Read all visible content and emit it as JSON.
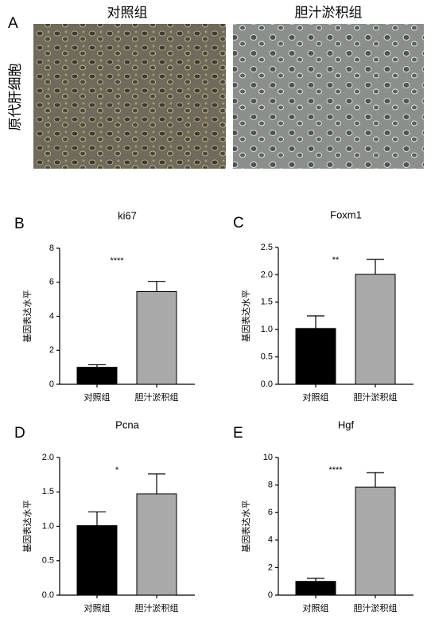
{
  "panel_a": {
    "label": "A",
    "columns": [
      "对照组",
      "胆汁淤积组"
    ],
    "row_label": "原代肝细胞"
  },
  "chart_data": [
    {
      "type": "bar",
      "panel": "B",
      "title": "ki67",
      "ylabel": "基因表达水平",
      "annotation": "****",
      "categories": [
        "对照组",
        "胆汁淤积组"
      ],
      "values": [
        1.0,
        5.45
      ],
      "errors": [
        0.15,
        0.6
      ],
      "colors": [
        "#000000",
        "#a9a9a9"
      ],
      "ylim": [
        0,
        8
      ],
      "yticks": [
        0,
        2,
        4,
        6,
        8
      ]
    },
    {
      "type": "bar",
      "panel": "C",
      "title": "Foxm1",
      "ylabel": "基因表达水平",
      "annotation": "**",
      "categories": [
        "对照组",
        "胆汁淤积组"
      ],
      "values": [
        1.02,
        2.01
      ],
      "errors": [
        0.23,
        0.27
      ],
      "colors": [
        "#000000",
        "#a9a9a9"
      ],
      "ylim": [
        0,
        2.5
      ],
      "yticks": [
        {
          "value": 0,
          "label": "0.0"
        },
        {
          "value": 0.5,
          "label": "0.5"
        },
        {
          "value": 1,
          "label": "1.0"
        },
        {
          "value": 1.5,
          "label": "1.5"
        },
        {
          "value": 2,
          "label": "2.0"
        },
        {
          "value": 2.5,
          "label": "2.5"
        }
      ]
    },
    {
      "type": "bar",
      "panel": "D",
      "title": "Pcna",
      "ylabel": "基因表达水平",
      "annotation": "*",
      "categories": [
        "对照组",
        "胆汁淤积组"
      ],
      "values": [
        1.01,
        1.47
      ],
      "errors": [
        0.2,
        0.29
      ],
      "colors": [
        "#000000",
        "#a9a9a9"
      ],
      "ylim": [
        0,
        2
      ],
      "yticks": [
        {
          "value": 0,
          "label": "0.0"
        },
        {
          "value": 0.5,
          "label": "0.5"
        },
        {
          "value": 1,
          "label": "1.0"
        },
        {
          "value": 1.5,
          "label": "1.5"
        },
        {
          "value": 2,
          "label": "2.0"
        }
      ]
    },
    {
      "type": "bar",
      "panel": "E",
      "title": "Hgf",
      "ylabel": "基因表达水平",
      "annotation": "****",
      "categories": [
        "对照组",
        "胆汁淤积组"
      ],
      "values": [
        1.0,
        7.85
      ],
      "errors": [
        0.22,
        1.05
      ],
      "colors": [
        "#000000",
        "#a9a9a9"
      ],
      "ylim": [
        0,
        10
      ],
      "yticks": [
        0,
        2,
        4,
        6,
        8,
        10
      ]
    }
  ]
}
